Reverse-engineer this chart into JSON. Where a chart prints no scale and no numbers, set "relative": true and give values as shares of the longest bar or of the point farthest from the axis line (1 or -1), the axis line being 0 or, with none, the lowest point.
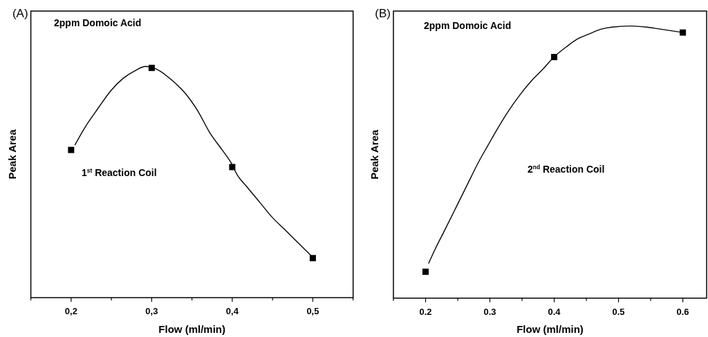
{
  "chart_data": [
    {
      "type": "line",
      "title": "(A)",
      "xlabel": "Flow (ml/min)",
      "ylabel": "Peak Area",
      "relative": true,
      "xlim": [
        0.15,
        0.55
      ],
      "xticks": [
        {
          "value": 0.15,
          "label": null
        },
        {
          "value": 0.2,
          "label": "0,2"
        },
        {
          "value": 0.25,
          "label": null
        },
        {
          "value": 0.3,
          "label": "0,3"
        },
        {
          "value": 0.35,
          "label": null
        },
        {
          "value": 0.4,
          "label": "0,4"
        },
        {
          "value": 0.45,
          "label": null
        },
        {
          "value": 0.5,
          "label": "0,5"
        },
        {
          "value": 0.55,
          "label": null
        }
      ],
      "annotations": [
        "2ppm Domoic Acid",
        "1$^{st}$ Reaction Coil"
      ],
      "series": [
        {
          "color": "#000000",
          "marker": "none",
          "line_style": "solid",
          "x": [
            0.2046,
            0.2169,
            0.2338,
            0.2492,
            0.2646,
            0.2799,
            0.2922,
            0.3076,
            0.326,
            0.3414,
            0.3568,
            0.3721,
            0.3875,
            0.3983,
            0.406,
            0.4183,
            0.4336,
            0.449,
            0.4644,
            0.4797,
            0.4988
          ],
          "values": [
            0.66,
            0.735,
            0.821,
            0.895,
            0.949,
            0.983,
            1.0,
            0.986,
            0.938,
            0.885,
            0.81,
            0.714,
            0.639,
            0.585,
            0.532,
            0.479,
            0.415,
            0.35,
            0.297,
            0.244,
            0.179
          ]
        },
        {
          "type": "scatter",
          "color": "#000000",
          "marker": "square",
          "x": [
            0.2,
            0.3,
            0.4,
            0.5
          ],
          "values": [
            0.639,
            0.994,
            0.565,
            0.171
          ]
        }
      ]
    },
    {
      "type": "line",
      "title": "(B)",
      "xlabel": "Flow (ml/min)",
      "ylabel": "Peak Area",
      "relative": true,
      "xlim": [
        0.15,
        0.637
      ],
      "xticks": [
        {
          "value": 0.15,
          "label": null
        },
        0.2,
        {
          "value": 0.25,
          "label": null
        },
        0.3,
        {
          "value": 0.35,
          "label": null
        },
        0.4,
        {
          "value": 0.45,
          "label": null
        },
        0.5,
        {
          "value": 0.55,
          "label": null
        },
        0.6
      ],
      "annotations": [
        "2ppm Domoic Acid",
        "2$^{nd}$ Reaction Coil"
      ],
      "series": [
        {
          "color": "#000000",
          "marker": "none",
          "line_style": "solid",
          "x": [
            0.2046,
            0.2153,
            0.2296,
            0.2475,
            0.2653,
            0.2831,
            0.2974,
            0.3117,
            0.3295,
            0.3474,
            0.3652,
            0.3831,
            0.3991,
            0.4187,
            0.4366,
            0.4544,
            0.4723,
            0.4901,
            0.5186,
            0.5436,
            0.5615,
            0.6
          ],
          "values": [
            0.127,
            0.182,
            0.249,
            0.334,
            0.419,
            0.503,
            0.563,
            0.622,
            0.69,
            0.749,
            0.8,
            0.843,
            0.885,
            0.923,
            0.953,
            0.971,
            0.988,
            0.996,
            1.0,
            0.996,
            0.99,
            0.976
          ]
        },
        {
          "type": "scatter",
          "color": "#000000",
          "marker": "square",
          "x": [
            0.2,
            0.4,
            0.6
          ],
          "values": [
            0.097,
            0.886,
            0.976
          ]
        }
      ]
    }
  ]
}
